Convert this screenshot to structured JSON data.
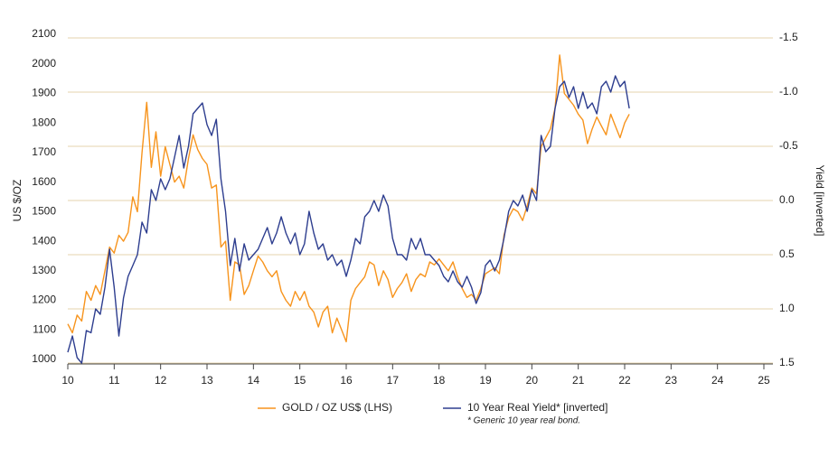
{
  "chart_data": {
    "type": "line",
    "y_label": "US $/OZ",
    "y2_label": "Yield [inverted]",
    "note": "* Generic 10 year real bond.",
    "x": [
      10,
      10.1,
      10.2,
      10.3,
      10.4,
      10.5,
      10.6,
      10.7,
      10.8,
      10.9,
      11,
      11.1,
      11.2,
      11.3,
      11.4,
      11.5,
      11.6,
      11.7,
      11.8,
      11.9,
      12,
      12.1,
      12.2,
      12.3,
      12.4,
      12.5,
      12.6,
      12.7,
      12.8,
      12.9,
      13,
      13.1,
      13.2,
      13.3,
      13.4,
      13.5,
      13.6,
      13.7,
      13.8,
      13.9,
      14,
      14.1,
      14.2,
      14.3,
      14.4,
      14.5,
      14.6,
      14.7,
      14.8,
      14.9,
      15,
      15.1,
      15.2,
      15.3,
      15.4,
      15.5,
      15.6,
      15.7,
      15.8,
      15.9,
      16,
      16.1,
      16.2,
      16.3,
      16.4,
      16.5,
      16.6,
      16.7,
      16.8,
      16.9,
      17,
      17.1,
      17.2,
      17.3,
      17.4,
      17.5,
      17.6,
      17.7,
      17.8,
      17.9,
      18,
      18.1,
      18.2,
      18.3,
      18.4,
      18.5,
      18.6,
      18.7,
      18.8,
      18.9,
      19,
      19.1,
      19.2,
      19.3,
      19.4,
      19.5,
      19.6,
      19.7,
      19.8,
      19.9,
      20,
      20.1,
      20.2,
      20.3,
      20.4,
      20.5,
      20.6,
      20.7,
      20.8,
      20.9,
      21,
      21.1,
      21.2,
      21.3,
      21.4,
      21.5,
      21.6,
      21.7,
      21.8,
      21.9,
      22,
      22.1
    ],
    "series": [
      {
        "name": "GOLD / OZ US$ (LHS)",
        "color": "#f7941d",
        "values": [
          1120,
          1090,
          1150,
          1130,
          1230,
          1200,
          1250,
          1220,
          1300,
          1380,
          1360,
          1420,
          1400,
          1430,
          1550,
          1500,
          1700,
          1870,
          1650,
          1770,
          1620,
          1720,
          1660,
          1600,
          1620,
          1580,
          1680,
          1760,
          1710,
          1680,
          1660,
          1580,
          1590,
          1380,
          1400,
          1200,
          1330,
          1320,
          1220,
          1250,
          1300,
          1350,
          1330,
          1300,
          1280,
          1300,
          1230,
          1200,
          1180,
          1230,
          1200,
          1230,
          1180,
          1160,
          1110,
          1160,
          1180,
          1090,
          1140,
          1100,
          1060,
          1200,
          1240,
          1260,
          1280,
          1330,
          1320,
          1250,
          1300,
          1270,
          1210,
          1240,
          1260,
          1290,
          1230,
          1270,
          1290,
          1280,
          1330,
          1320,
          1340,
          1320,
          1300,
          1330,
          1280,
          1240,
          1210,
          1220,
          1200,
          1240,
          1290,
          1300,
          1310,
          1290,
          1420,
          1480,
          1510,
          1500,
          1470,
          1520,
          1580,
          1560,
          1720,
          1750,
          1780,
          1850,
          2030,
          1900,
          1880,
          1860,
          1830,
          1810,
          1730,
          1780,
          1820,
          1790,
          1760,
          1830,
          1790,
          1750,
          1800,
          1830
        ]
      },
      {
        "name": "10 Year Real Yield* [inverted]",
        "color": "#2e3e8f",
        "axis": "y2",
        "values": [
          1.4,
          1.25,
          1.45,
          1.5,
          1.2,
          1.22,
          1.0,
          1.05,
          0.8,
          0.45,
          0.8,
          1.25,
          0.9,
          0.7,
          0.6,
          0.5,
          0.2,
          0.3,
          -0.1,
          0.0,
          -0.2,
          -0.1,
          -0.2,
          -0.4,
          -0.6,
          -0.3,
          -0.5,
          -0.8,
          -0.85,
          -0.9,
          -0.7,
          -0.6,
          -0.75,
          -0.2,
          0.1,
          0.6,
          0.35,
          0.65,
          0.4,
          0.55,
          0.5,
          0.45,
          0.35,
          0.25,
          0.4,
          0.3,
          0.15,
          0.3,
          0.4,
          0.3,
          0.5,
          0.4,
          0.1,
          0.3,
          0.45,
          0.4,
          0.55,
          0.5,
          0.6,
          0.55,
          0.7,
          0.55,
          0.35,
          0.4,
          0.15,
          0.1,
          0.0,
          0.1,
          -0.05,
          0.05,
          0.35,
          0.5,
          0.5,
          0.55,
          0.35,
          0.45,
          0.35,
          0.5,
          0.5,
          0.55,
          0.6,
          0.7,
          0.75,
          0.65,
          0.75,
          0.8,
          0.7,
          0.8,
          0.95,
          0.85,
          0.6,
          0.55,
          0.65,
          0.55,
          0.35,
          0.1,
          0.0,
          0.05,
          -0.05,
          0.1,
          -0.1,
          0.0,
          -0.6,
          -0.45,
          -0.5,
          -0.85,
          -1.05,
          -1.1,
          -0.95,
          -1.05,
          -0.85,
          -1.0,
          -0.85,
          -0.9,
          -0.8,
          -1.05,
          -1.1,
          -1.0,
          -1.15,
          -1.05,
          -1.1,
          -0.85
        ]
      }
    ],
    "xlim": [
      10,
      25
    ],
    "xticks": [
      10,
      11,
      12,
      13,
      14,
      15,
      16,
      17,
      18,
      19,
      20,
      21,
      22,
      23,
      24,
      25
    ],
    "ylim": [
      1000,
      2100
    ],
    "yticks": [
      1000,
      1100,
      1200,
      1300,
      1400,
      1500,
      1600,
      1700,
      1800,
      1900,
      2000,
      2100
    ],
    "y2lim": [
      1.5,
      -1.5
    ],
    "y2ticks": [
      1.5,
      {
        "value": 1,
        "label": "1.0"
      },
      0.5,
      {
        "value": 0,
        "label": "0.0"
      },
      -0.5,
      {
        "value": -1,
        "label": "-1.0"
      },
      -1.5
    ],
    "grid": true
  }
}
